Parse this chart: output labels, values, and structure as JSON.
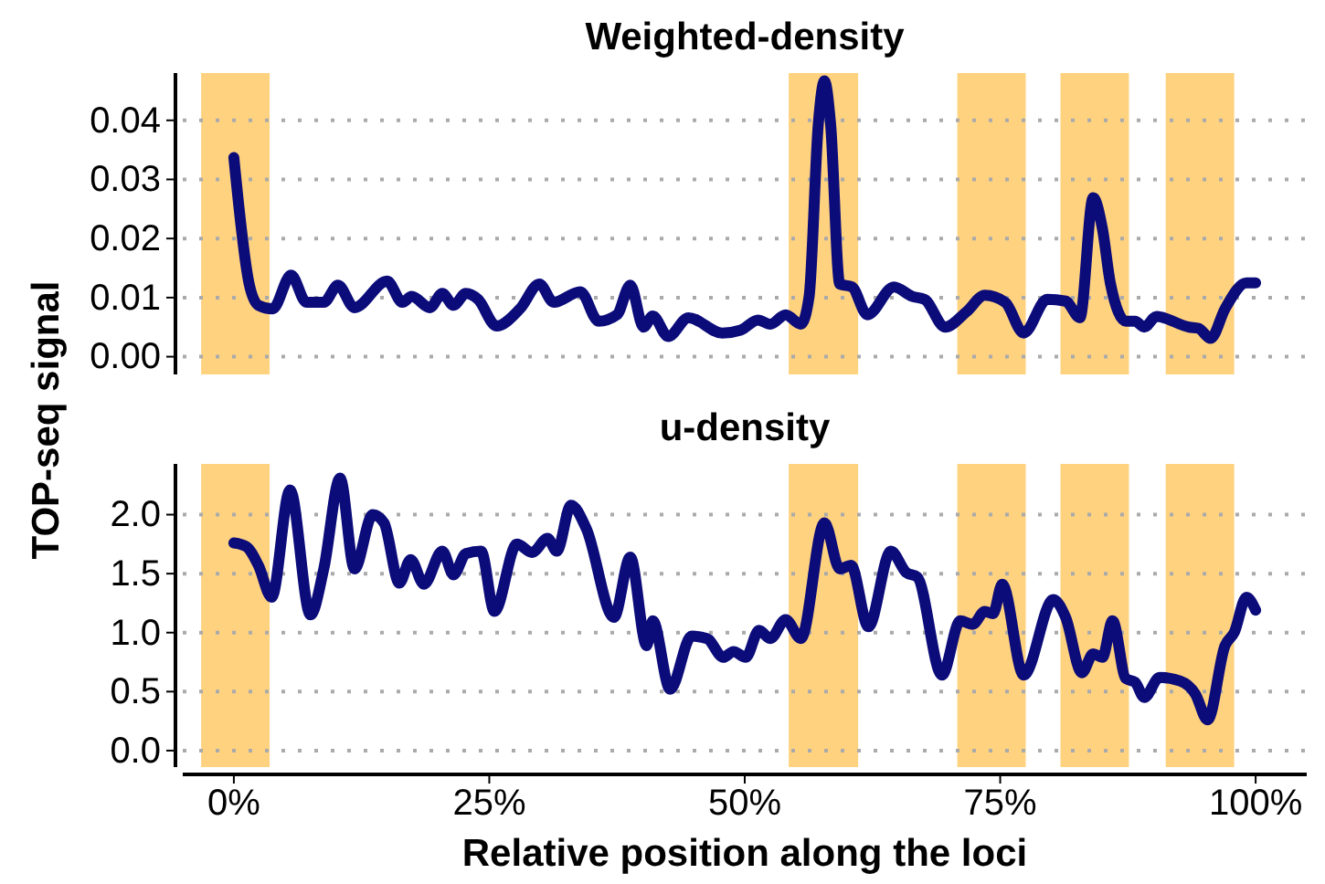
{
  "chart_data": [
    {
      "type": "line",
      "title": "Weighted-density",
      "ylabel": "TOP-seq signal",
      "tick_labels": "y",
      "grid": "y",
      "line_style": "solid",
      "marker": "none",
      "xlim": [
        -5,
        105
      ],
      "ylim": [
        -0.003,
        0.048
      ],
      "yticks": [
        {
          "value": 0,
          "label": "0.00"
        },
        {
          "value": 0.01,
          "label": "0.01"
        },
        {
          "value": 0.02,
          "label": "0.02"
        },
        {
          "value": 0.03,
          "label": "0.03"
        },
        {
          "value": 0.04,
          "label": "0.04"
        }
      ],
      "bands": [
        {
          "axis": "x",
          "from": -3.2,
          "to": 3.5,
          "color": "#ffd27f"
        },
        {
          "axis": "x",
          "from": 54.3,
          "to": 61.1,
          "color": "#ffd27f"
        },
        {
          "axis": "x",
          "from": 70.8,
          "to": 77.5,
          "color": "#ffd27f"
        },
        {
          "axis": "x",
          "from": 80.9,
          "to": 87.6,
          "color": "#ffd27f"
        },
        {
          "axis": "x",
          "from": 91.2,
          "to": 97.9,
          "color": "#ffd27f"
        }
      ],
      "series": [
        {
          "color": "#0b0b7a",
          "x": [
            0,
            1.5,
            2.4,
            3.8,
            5.6,
            7.1,
            8.8,
            10.2,
            11.8,
            15.0,
            16.5,
            17.4,
            19.2,
            20.4,
            21.5,
            22.7,
            23.9,
            25.7,
            28.0,
            29.9,
            31.3,
            33.9,
            35.7,
            37.5,
            38.8,
            40.1,
            41.0,
            42.5,
            44.5,
            47.8,
            49.6,
            51.3,
            52.5,
            54.0,
            55.5,
            56.3,
            57.2,
            57.8,
            58.4,
            59.3,
            60.5,
            62.0,
            64.6,
            66.4,
            67.6,
            69.6,
            71.7,
            73.5,
            75.5,
            77.3,
            79.6,
            81.4,
            82.8,
            84.1,
            85.0,
            85.8,
            87.3,
            88.2,
            89.1,
            90.3,
            93.5,
            94.4,
            95.6,
            97.0,
            99.1,
            100
          ],
          "values": [
            0.0337,
            0.0123,
            0.0087,
            0.0081,
            0.0138,
            0.0092,
            0.0092,
            0.0121,
            0.0083,
            0.0128,
            0.0092,
            0.0102,
            0.0083,
            0.0107,
            0.0087,
            0.0107,
            0.0097,
            0.0052,
            0.0081,
            0.0123,
            0.0092,
            0.011,
            0.006,
            0.0071,
            0.0121,
            0.005,
            0.0069,
            0.0034,
            0.0066,
            0.004,
            0.0045,
            0.0062,
            0.0055,
            0.0071,
            0.0055,
            0.0102,
            0.0394,
            0.0467,
            0.0394,
            0.0123,
            0.0118,
            0.0071,
            0.0118,
            0.0102,
            0.0097,
            0.005,
            0.0076,
            0.0104,
            0.0092,
            0.004,
            0.0097,
            0.0094,
            0.0066,
            0.0269,
            0.0217,
            0.0123,
            0.006,
            0.006,
            0.005,
            0.0068,
            0.005,
            0.0048,
            0.0031,
            0.0081,
            0.0125,
            0.0125
          ]
        }
      ]
    },
    {
      "type": "line",
      "title": "u-density",
      "xlabel": "Relative position along the loci",
      "grid": "y",
      "line_style": "solid",
      "marker": "none",
      "xlim": [
        -5,
        105
      ],
      "xticks": [
        {
          "value": 0,
          "label": "0%"
        },
        {
          "value": 25,
          "label": "25%"
        },
        {
          "value": 50,
          "label": "50%"
        },
        {
          "value": 75,
          "label": "75%"
        },
        {
          "value": 100,
          "label": "100%"
        }
      ],
      "ylim": [
        -0.14,
        2.43
      ],
      "yticks": [
        {
          "value": 0,
          "label": "0.0"
        },
        {
          "value": 0.5,
          "label": "0.5"
        },
        {
          "value": 1,
          "label": "1.0"
        },
        {
          "value": 1.5,
          "label": "1.5"
        },
        {
          "value": 2,
          "label": "2.0"
        }
      ],
      "bands": [
        {
          "axis": "x",
          "from": -3.2,
          "to": 3.5,
          "color": "#ffd27f"
        },
        {
          "axis": "x",
          "from": 54.3,
          "to": 61.1,
          "color": "#ffd27f"
        },
        {
          "axis": "x",
          "from": 70.8,
          "to": 77.5,
          "color": "#ffd27f"
        },
        {
          "axis": "x",
          "from": 80.9,
          "to": 87.6,
          "color": "#ffd27f"
        },
        {
          "axis": "x",
          "from": 91.2,
          "to": 97.9,
          "color": "#ffd27f"
        }
      ],
      "series": [
        {
          "color": "#0b0b7a",
          "x": [
            0,
            1.2,
            2.4,
            3.7,
            5.5,
            7.5,
            8.8,
            10.4,
            11.8,
            13.6,
            14.7,
            16.2,
            17.3,
            18.6,
            20.4,
            21.5,
            22.7,
            24.2,
            25.5,
            27.7,
            29.2,
            30.7,
            31.6,
            33.0,
            34.5,
            37.2,
            38.8,
            40.4,
            41.0,
            42.7,
            44.8,
            46.3,
            47.9,
            48.9,
            50.1,
            51.4,
            52.5,
            54.0,
            55.5,
            57.8,
            59.3,
            60.4,
            62.1,
            64.3,
            65.8,
            66.9,
            69.3,
            71.1,
            72.3,
            73.5,
            74.3,
            75.2,
            77.3,
            80.2,
            81.4,
            83.0,
            84.1,
            85.0,
            86.0,
            87.3,
            88.2,
            89.1,
            90.6,
            92.6,
            94.1,
            95.3,
            97.0,
            97.9,
            99.1,
            100
          ],
          "values": [
            1.76,
            1.73,
            1.57,
            1.3,
            2.21,
            1.15,
            1.54,
            2.31,
            1.54,
            2.0,
            1.93,
            1.42,
            1.62,
            1.41,
            1.69,
            1.49,
            1.67,
            1.69,
            1.18,
            1.75,
            1.68,
            1.8,
            1.69,
            2.08,
            1.88,
            1.13,
            1.64,
            0.89,
            1.1,
            0.52,
            0.97,
            0.95,
            0.79,
            0.84,
            0.79,
            1.02,
            0.95,
            1.11,
            0.95,
            1.93,
            1.54,
            1.57,
            1.05,
            1.69,
            1.51,
            1.47,
            0.64,
            1.1,
            1.07,
            1.18,
            1.16,
            1.41,
            0.64,
            1.28,
            1.13,
            0.66,
            0.82,
            0.79,
            1.1,
            0.61,
            0.58,
            0.45,
            0.62,
            0.59,
            0.48,
            0.26,
            0.89,
            1.0,
            1.3,
            1.19
          ]
        }
      ]
    }
  ]
}
